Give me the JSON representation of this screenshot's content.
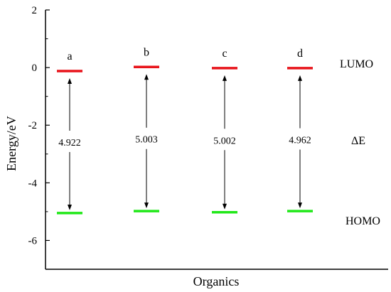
{
  "chart_data": {
    "type": "energy-level",
    "xlabel": "Organics",
    "ylabel": "Energy/eV",
    "ylim": [
      -7.0,
      2.0
    ],
    "yticks": [
      2,
      0,
      -2,
      -4,
      -6
    ],
    "grid": false,
    "categories": [
      "a",
      "b",
      "c",
      "d"
    ],
    "lumo": [
      -0.12,
      0.02,
      -0.02,
      -0.02
    ],
    "homo": [
      -5.05,
      -4.98,
      -5.02,
      -4.98
    ],
    "gaps": [
      "4.922",
      "5.003",
      "5.002",
      "4.962"
    ],
    "labels": {
      "lumo": "LUMO",
      "gap": "ΔE",
      "homo": "HOMO"
    },
    "colors": {
      "lumo": "#e8141b",
      "homo": "#22e81a",
      "axis": "#000000"
    }
  }
}
